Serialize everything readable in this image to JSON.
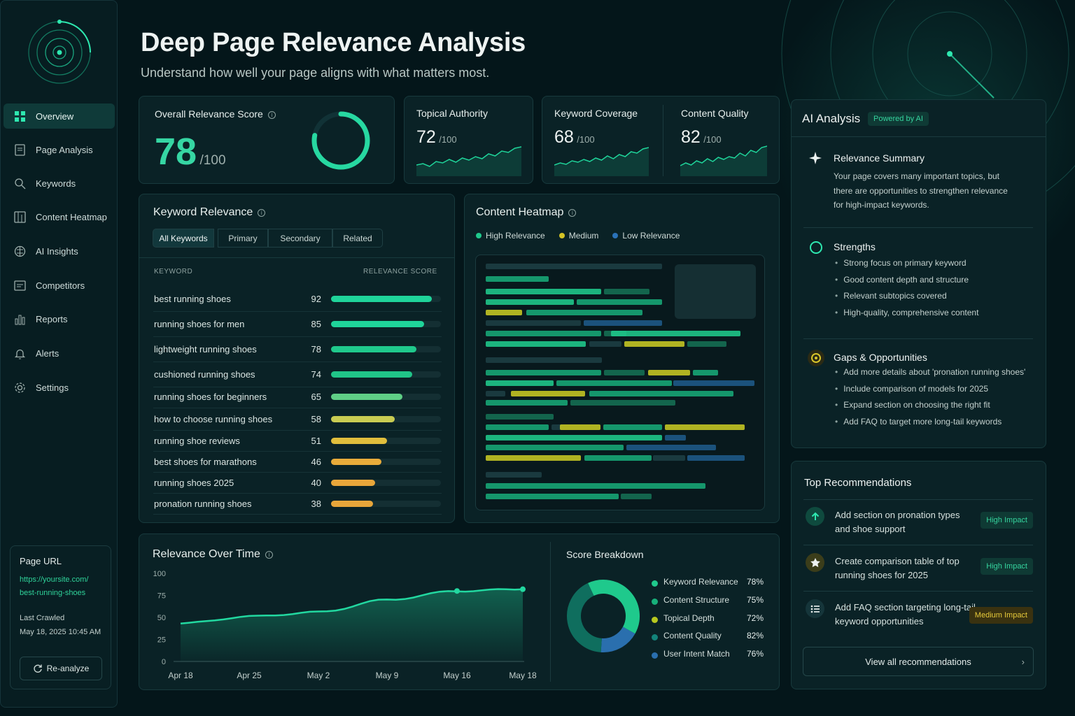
{
  "page": {
    "title": "Deep Page Relevance Analysis",
    "subtitle": "Understand how well your page aligns with what matters most."
  },
  "sidebar": {
    "items": [
      {
        "label": "Overview",
        "icon": "grid-icon",
        "active": true
      },
      {
        "label": "Page Analysis",
        "icon": "document-icon"
      },
      {
        "label": "Keywords",
        "icon": "search-icon"
      },
      {
        "label": "Content Heatmap",
        "icon": "heatmap-icon"
      },
      {
        "label": "AI Insights",
        "icon": "brain-icon"
      },
      {
        "label": "Competitors",
        "icon": "competitors-icon"
      },
      {
        "label": "Reports",
        "icon": "bar-chart-icon"
      },
      {
        "label": "Alerts",
        "icon": "bell-icon"
      },
      {
        "label": "Settings",
        "icon": "gear-icon"
      }
    ],
    "page_url_label": "Page URL",
    "page_url_line1": "https://yoursite.com/",
    "page_url_line2": "best-running-shoes",
    "last_crawled_label": "Last Crawled",
    "last_crawled_value": "May 18, 2025 10:45 AM",
    "reanalyze_label": "Re-analyze"
  },
  "overall": {
    "label": "Overall Relevance Score",
    "score": "78",
    "of": "/100",
    "fraction": 0.78
  },
  "metrics": [
    {
      "label": "Topical Authority",
      "value": "72",
      "of": "/100"
    },
    {
      "label": "Keyword Coverage",
      "value": "68",
      "of": "/100"
    },
    {
      "label": "Content Quality",
      "value": "82",
      "of": "/100"
    }
  ],
  "keyword_relevance": {
    "title": "Keyword Relevance",
    "tabs": [
      "All Keywords",
      "Primary",
      "Secondary",
      "Related"
    ],
    "col_keyword": "KEYWORD",
    "col_score": "RELEVANCE SCORE",
    "rows": [
      {
        "keyword": "best running shoes",
        "score": 92
      },
      {
        "keyword": "running shoes for men",
        "score": 85
      },
      {
        "keyword": "lightweight running shoes",
        "score": 78
      },
      {
        "keyword": "cushioned running shoes",
        "score": 74
      },
      {
        "keyword": "running shoes for beginners",
        "score": 65
      },
      {
        "keyword": "how to choose running shoes",
        "score": 58
      },
      {
        "keyword": "running shoe reviews",
        "score": 51
      },
      {
        "keyword": "best shoes for marathons",
        "score": 46
      },
      {
        "keyword": "running shoes 2025",
        "score": 40
      },
      {
        "keyword": "pronation running shoes",
        "score": 38
      }
    ]
  },
  "heatmap": {
    "title": "Content Heatmap",
    "legend": [
      {
        "label": "High Relevance",
        "color": "#1fc98c"
      },
      {
        "label": "Medium",
        "color": "#d4c325"
      },
      {
        "label": "Low Relevance",
        "color": "#2a72b8"
      }
    ]
  },
  "relevance_over_time": {
    "title": "Relevance Over Time",
    "chart_data": {
      "type": "area",
      "x": [
        "Apr 18",
        "Apr 25",
        "May 2",
        "May 9",
        "May 16",
        "May 18"
      ],
      "yticks": [
        0,
        25,
        50,
        75,
        100
      ],
      "ylim": [
        0,
        100
      ],
      "values": [
        43,
        51,
        56,
        70,
        80,
        82
      ]
    }
  },
  "score_breakdown": {
    "title": "Score Breakdown",
    "chart_data": {
      "type": "pie",
      "items": [
        {
          "label": "Keyword Relevance",
          "value": "78%",
          "color": "#1fc98c"
        },
        {
          "label": "Content Structure",
          "value": "75%",
          "color": "#17b07a"
        },
        {
          "label": "Topical Depth",
          "value": "72%",
          "color": "#b7c81f"
        },
        {
          "label": "Content Quality",
          "value": "82%",
          "color": "#13837a"
        },
        {
          "label": "User Intent Match",
          "value": "76%",
          "color": "#2a6fae"
        }
      ]
    }
  },
  "ai_analysis": {
    "title": "AI Analysis",
    "badge": "Powered by AI",
    "summary_title": "Relevance Summary",
    "summary_lines": [
      "Your page covers many important topics, but",
      "there are opportunities to strengthen relevance",
      "for high-impact keywords."
    ],
    "strengths_title": "Strengths",
    "strengths": [
      "Strong focus on primary keyword",
      "Good content depth and structure",
      "Relevant subtopics covered",
      "High-quality, comprehensive content"
    ],
    "gaps_title": "Gaps & Opportunities",
    "gaps": [
      "Add more details about 'pronation running shoes'",
      "Include comparison of models for 2025",
      "Expand section on choosing the right fit",
      "Add FAQ to target more long-tail keywords"
    ]
  },
  "recommendations": {
    "title": "Top Recommendations",
    "items": [
      {
        "line1": "Add section on pronation types",
        "line2": "and shoe support",
        "impact": "High Impact",
        "icon": "arrow-up-icon"
      },
      {
        "line1": "Create comparison table of top",
        "line2": "running shoes for 2025",
        "impact": "High Impact",
        "icon": "star-icon"
      },
      {
        "line1": "Add FAQ section targeting long-tail",
        "line2": "keyword opportunities",
        "impact": "Medium Impact",
        "icon": "list-icon"
      }
    ],
    "view_all": "View all recommendations"
  },
  "colors": {
    "accent": "#1fd49a",
    "background": "#04161a",
    "panel": "#0a2226",
    "medium": "#d4c325",
    "low": "#2a72b8"
  }
}
